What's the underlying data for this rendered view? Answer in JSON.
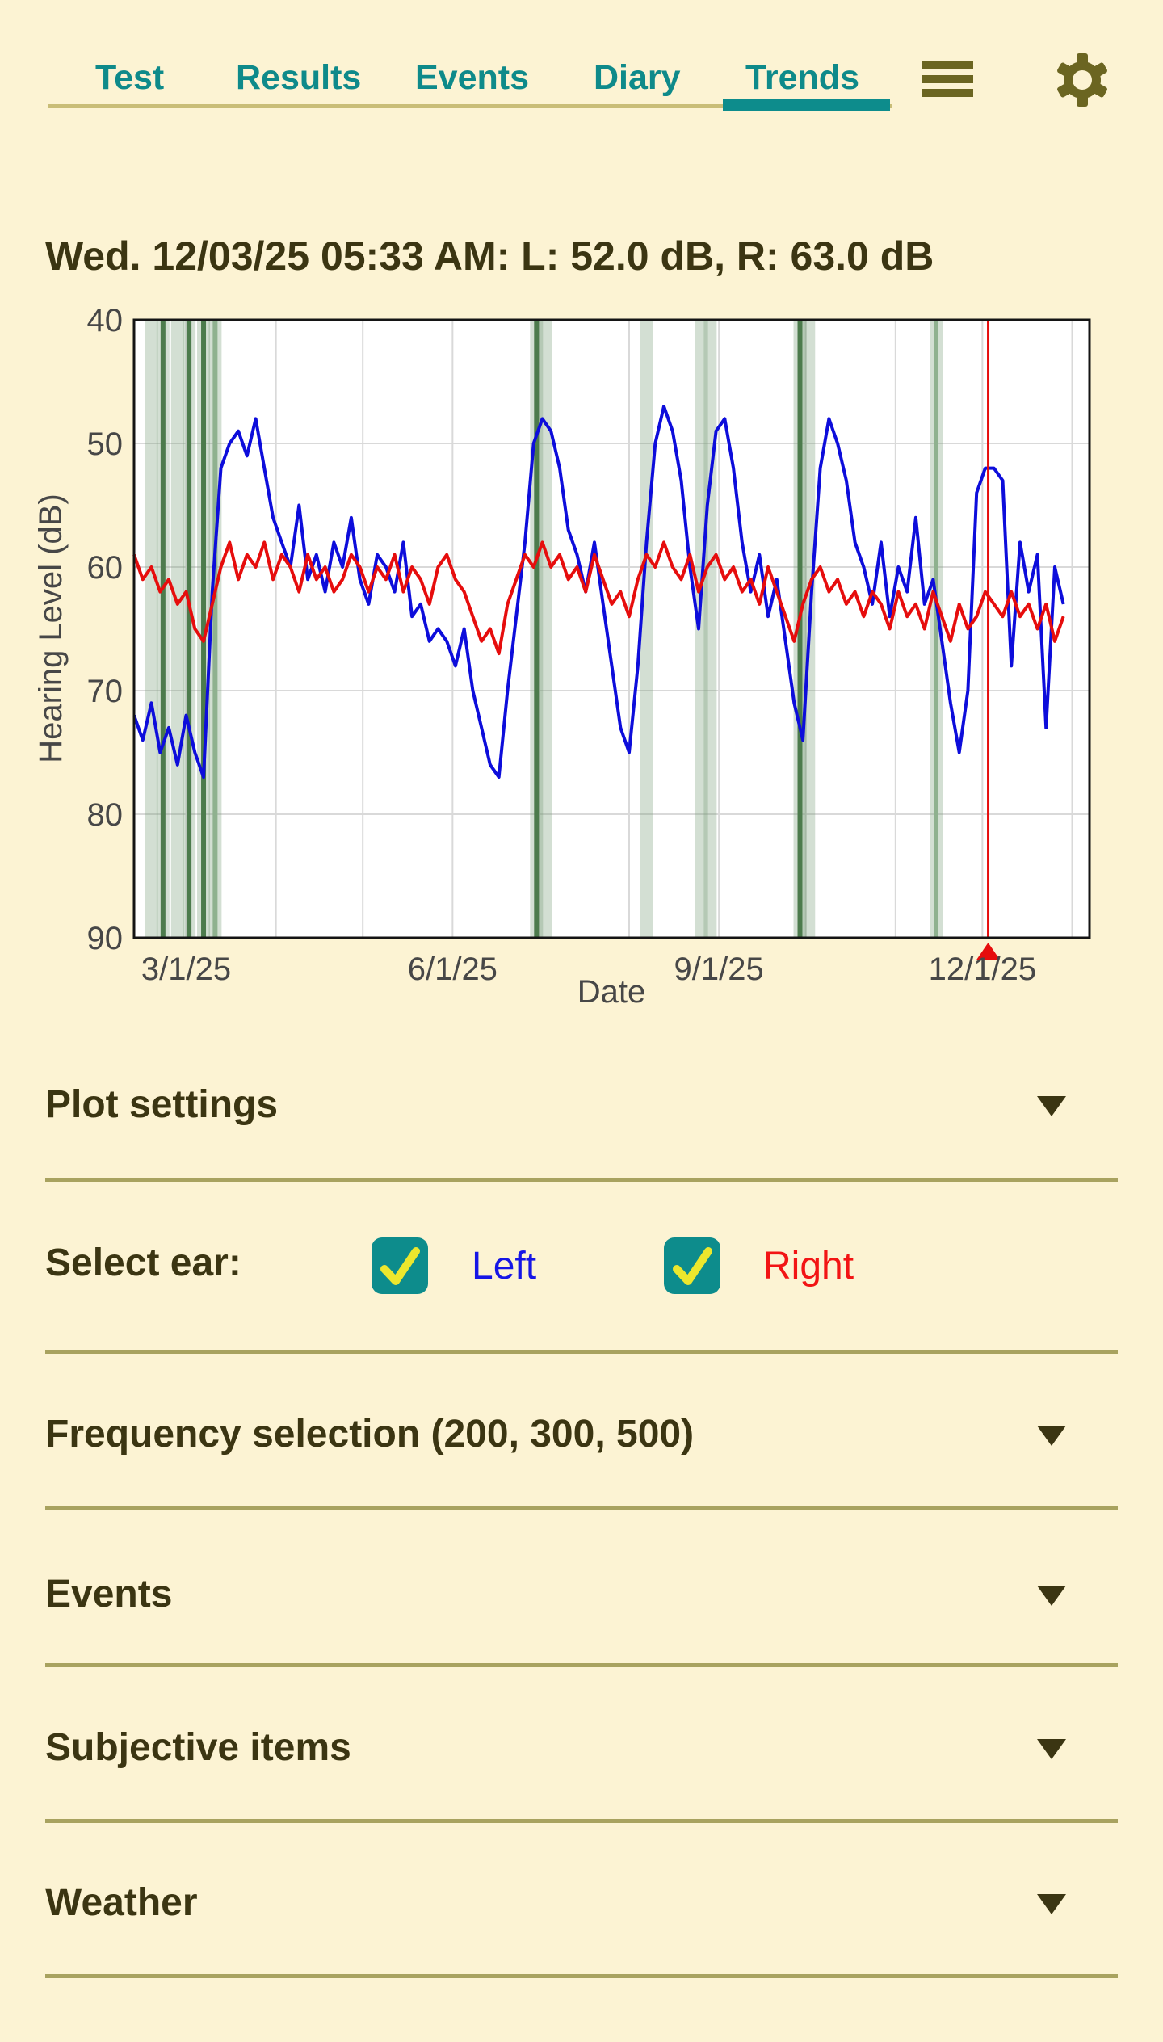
{
  "colors": {
    "background": "#fcf3d3",
    "tab_teal": "#0e8a8a",
    "active_underline": "#0d8c8c",
    "inactive_underline": "#c9bd77",
    "icon_olive": "#6b6521",
    "dark_text": "#3b3512",
    "divider": "#a8a25f",
    "checkbox_fill": "#0d8c8c",
    "checkmark_yellow": "#ece72d",
    "left_ear_blue": "#0d0ddb",
    "right_ear_red": "#e60d0d",
    "event_line_green": "#4c7b4c"
  },
  "tabs": {
    "items": [
      {
        "label": "Test",
        "active": false
      },
      {
        "label": "Results",
        "active": false
      },
      {
        "label": "Events",
        "active": false
      },
      {
        "label": "Diary",
        "active": false
      },
      {
        "label": "Trends",
        "active": true
      }
    ]
  },
  "header_icons": {
    "menu": "hamburger-menu-icon",
    "settings": "gear-icon"
  },
  "chart_data": {
    "type": "line",
    "title": "Wed. 12/03/25 05:33 AM: L: 52.0 dB, R: 63.0 dB",
    "xlabel": "Date",
    "ylabel": "Hearing Level (dB)",
    "ylim": [
      40,
      90
    ],
    "y_inverted": true,
    "y_ticks": [
      40,
      50,
      60,
      70,
      80,
      90
    ],
    "x_unit": "days since 2025-02-11",
    "x_domain": [
      0,
      330
    ],
    "x_ticks": [
      {
        "day": 18,
        "label": "3/1/25"
      },
      {
        "day": 110,
        "label": "6/1/25"
      },
      {
        "day": 202,
        "label": "9/1/25"
      },
      {
        "day": 293,
        "label": "12/1/25"
      }
    ],
    "month_gridlines": [
      18,
      49,
      79,
      110,
      140,
      171,
      202,
      232,
      263,
      293,
      324
    ],
    "grid": true,
    "legend_position": "none",
    "days": [
      0,
      3,
      6,
      9,
      12,
      15,
      18,
      21,
      24,
      27,
      30,
      33,
      36,
      39,
      42,
      45,
      48,
      51,
      54,
      57,
      60,
      63,
      66,
      69,
      72,
      75,
      78,
      81,
      84,
      87,
      90,
      93,
      96,
      99,
      102,
      105,
      108,
      111,
      114,
      117,
      120,
      123,
      126,
      129,
      132,
      135,
      138,
      141,
      144,
      147,
      150,
      153,
      156,
      159,
      162,
      165,
      168,
      171,
      174,
      177,
      180,
      183,
      186,
      189,
      192,
      195,
      198,
      201,
      204,
      207,
      210,
      213,
      216,
      219,
      222,
      225,
      228,
      231,
      234,
      237,
      240,
      243,
      246,
      249,
      252,
      255,
      258,
      261,
      264,
      267,
      270,
      273,
      276,
      279,
      282,
      285,
      288,
      291,
      294,
      297,
      300,
      303,
      306,
      309,
      312,
      315,
      318,
      321
    ],
    "series": [
      {
        "name": "Left",
        "color": "#0d0ddb",
        "values": [
          72,
          74,
          71,
          75,
          73,
          76,
          72,
          75,
          77,
          62,
          52,
          50,
          49,
          51,
          48,
          52,
          56,
          58,
          60,
          55,
          61,
          59,
          62,
          58,
          60,
          56,
          61,
          63,
          59,
          60,
          62,
          58,
          64,
          63,
          66,
          65,
          66,
          68,
          65,
          70,
          73,
          76,
          77,
          70,
          64,
          58,
          50,
          48,
          49,
          52,
          57,
          59,
          62,
          58,
          63,
          68,
          73,
          75,
          68,
          58,
          50,
          47,
          49,
          53,
          60,
          65,
          55,
          49,
          48,
          52,
          58,
          62,
          59,
          64,
          61,
          66,
          71,
          74,
          62,
          52,
          48,
          50,
          53,
          58,
          60,
          63,
          58,
          64,
          60,
          62,
          56,
          63,
          61,
          66,
          71,
          75,
          70,
          54,
          52,
          52,
          53,
          68,
          58,
          62,
          59,
          73,
          60,
          63
        ]
      },
      {
        "name": "Right",
        "color": "#e60d0d",
        "values": [
          59,
          61,
          60,
          62,
          61,
          63,
          62,
          65,
          66,
          63,
          60,
          58,
          61,
          59,
          60,
          58,
          61,
          59,
          60,
          62,
          59,
          61,
          60,
          62,
          61,
          59,
          60,
          62,
          60,
          61,
          59,
          62,
          60,
          61,
          63,
          60,
          59,
          61,
          62,
          64,
          66,
          65,
          67,
          63,
          61,
          59,
          60,
          58,
          60,
          59,
          61,
          60,
          62,
          59,
          61,
          63,
          62,
          64,
          61,
          59,
          60,
          58,
          60,
          61,
          59,
          62,
          60,
          59,
          61,
          60,
          62,
          61,
          63,
          60,
          62,
          64,
          66,
          63,
          61,
          60,
          62,
          61,
          63,
          62,
          64,
          62,
          63,
          65,
          62,
          64,
          63,
          65,
          62,
          64,
          66,
          63,
          65,
          64,
          62,
          63,
          64,
          62,
          64,
          63,
          65,
          63,
          66,
          64
        ]
      }
    ],
    "event_lines": [
      {
        "day": 6,
        "intensity": "light"
      },
      {
        "day": 10,
        "intensity": "dark"
      },
      {
        "day": 15,
        "intensity": "light"
      },
      {
        "day": 19,
        "intensity": "dark"
      },
      {
        "day": 24,
        "intensity": "dark"
      },
      {
        "day": 28,
        "intensity": "medium"
      },
      {
        "day": 139,
        "intensity": "dark"
      },
      {
        "day": 142,
        "intensity": "light"
      },
      {
        "day": 177,
        "intensity": "light"
      },
      {
        "day": 196,
        "intensity": "light"
      },
      {
        "day": 199,
        "intensity": "light"
      },
      {
        "day": 230,
        "intensity": "dark"
      },
      {
        "day": 233,
        "intensity": "light"
      },
      {
        "day": 277,
        "intensity": "medium"
      }
    ],
    "selected_marker": {
      "day": 295,
      "color": "#e60d0d"
    }
  },
  "sections": {
    "plot_settings": {
      "label": "Plot settings"
    },
    "select_ear": {
      "label": "Select ear:",
      "left": {
        "label": "Left",
        "checked": true,
        "color": "#1515e6"
      },
      "right": {
        "label": "Right",
        "checked": true,
        "color": "#f21414"
      }
    },
    "frequency": {
      "label": "Frequency selection (200, 300, 500)"
    },
    "events": {
      "label": "Events"
    },
    "subjective": {
      "label": "Subjective items"
    },
    "weather": {
      "label": "Weather"
    }
  }
}
